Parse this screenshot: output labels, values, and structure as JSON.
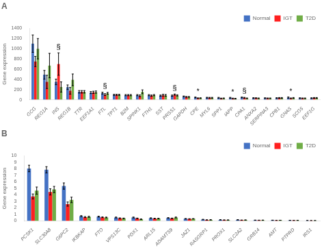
{
  "chart_data": [
    {
      "type": "bar",
      "title": "A",
      "categories": [
        "GCG",
        "REG1A",
        "INS",
        "REG1B",
        "TTR",
        "EEF1A1",
        "FTL",
        "TPT1",
        "B2M",
        "SPINK1",
        "FTH1",
        "SST",
        "PRSS1",
        "GAPDH",
        "CPE",
        "MYL6",
        "SPP1",
        "IAPP",
        "CPA1",
        "ANXA2",
        "SERPINA3",
        "CPB1",
        "GNAS",
        "SCG5",
        "EEF1G"
      ],
      "series": [
        {
          "name": "Normal",
          "color": "#4472C4",
          "values": [
            1100,
            490,
            350,
            245,
            155,
            140,
            130,
            95,
            90,
            90,
            90,
            80,
            80,
            65,
            45,
            40,
            38,
            38,
            45,
            32,
            30,
            32,
            42,
            30,
            30
          ],
          "errors": [
            170,
            85,
            55,
            45,
            25,
            20,
            18,
            12,
            12,
            12,
            12,
            12,
            12,
            8,
            8,
            8,
            8,
            8,
            8,
            8,
            8,
            8,
            12,
            8,
            8
          ]
        },
        {
          "name": "IGT",
          "color": "#FF2020",
          "values": [
            750,
            350,
            700,
            175,
            155,
            145,
            100,
            95,
            90,
            75,
            80,
            90,
            100,
            55,
            30,
            38,
            25,
            25,
            38,
            32,
            28,
            35,
            28,
            28,
            35
          ],
          "errors": [
            100,
            130,
            220,
            65,
            25,
            22,
            18,
            12,
            12,
            18,
            12,
            18,
            12,
            8,
            6,
            8,
            6,
            6,
            8,
            6,
            6,
            8,
            6,
            6,
            8
          ]
        },
        {
          "name": "T2D",
          "color": "#70AD47",
          "values": [
            1000,
            670,
            250,
            390,
            155,
            150,
            125,
            95,
            90,
            155,
            90,
            85,
            85,
            55,
            32,
            38,
            28,
            22,
            28,
            28,
            28,
            35,
            35,
            28,
            35
          ],
          "errors": [
            200,
            240,
            100,
            115,
            25,
            22,
            18,
            12,
            12,
            38,
            12,
            18,
            12,
            8,
            6,
            8,
            6,
            6,
            6,
            6,
            6,
            8,
            8,
            6,
            8
          ]
        }
      ],
      "annotations": [
        {
          "category": "INS",
          "text": "§"
        },
        {
          "category": "FTL",
          "text": "§"
        },
        {
          "category": "PRSS1",
          "text": "§"
        },
        {
          "category": "CPA1",
          "text": "§"
        },
        {
          "category": "CPE",
          "text": "*"
        },
        {
          "category": "IAPP",
          "text": "*"
        },
        {
          "category": "GNAS",
          "text": "*"
        }
      ],
      "y_label": "Gene expression",
      "ylim": [
        0,
        1400
      ],
      "yticks": [
        0,
        200,
        400,
        600,
        800,
        1000,
        1200,
        1400
      ],
      "grid": false,
      "legend": "upper right"
    },
    {
      "type": "bar",
      "title": "B",
      "categories": [
        "PCSK1",
        "SLC30A8",
        "G6PC2",
        "IKBKAP",
        "FTO",
        "VPS13C",
        "PDX1",
        "ARL15",
        "ADAMTS9",
        "JAZ1",
        "RASGRP1",
        "PROX1",
        "SLC2A2",
        "GRB14",
        "AMT",
        "PTPRD",
        "IRS1"
      ],
      "series": [
        {
          "name": "Normal",
          "color": "#4472C4",
          "values": [
            8.05,
            7.85,
            5.35,
            0.72,
            0.65,
            0.52,
            0.52,
            0.42,
            0.45,
            0.32,
            0.2,
            0.16,
            0.16,
            0.1,
            0.09,
            0.07,
            0.05
          ],
          "errors": [
            0.5,
            0.48,
            0.48,
            0.09,
            0.07,
            0.07,
            0.07,
            0.05,
            0.05,
            0.04,
            0.04,
            0.03,
            0.03,
            0.02,
            0.02,
            0.02,
            0.01
          ]
        },
        {
          "name": "IGT",
          "color": "#FF2020",
          "values": [
            3.75,
            4.45,
            2.58,
            0.58,
            0.55,
            0.4,
            0.38,
            0.36,
            0.38,
            0.3,
            0.14,
            0.13,
            0.11,
            0.09,
            0.07,
            0.06,
            0.04
          ],
          "errors": [
            0.38,
            0.48,
            0.32,
            0.08,
            0.06,
            0.06,
            0.05,
            0.04,
            0.05,
            0.03,
            0.03,
            0.02,
            0.02,
            0.02,
            0.01,
            0.01,
            0.01
          ]
        },
        {
          "name": "T2D",
          "color": "#70AD47",
          "values": [
            4.65,
            4.82,
            3.22,
            0.62,
            0.52,
            0.38,
            0.26,
            0.36,
            0.52,
            0.32,
            0.16,
            0.13,
            0.13,
            0.1,
            0.09,
            0.07,
            0.04
          ],
          "errors": [
            0.55,
            0.48,
            0.42,
            0.09,
            0.06,
            0.05,
            0.04,
            0.04,
            0.07,
            0.03,
            0.03,
            0.02,
            0.02,
            0.02,
            0.01,
            0.01,
            0.01
          ]
        }
      ],
      "y_label": "Gene expression",
      "ylim": [
        0,
        10
      ],
      "yticks": [
        0,
        1,
        2,
        3,
        4,
        5,
        6,
        7,
        8,
        9,
        10
      ],
      "grid": false,
      "legend": "upper right"
    }
  ]
}
